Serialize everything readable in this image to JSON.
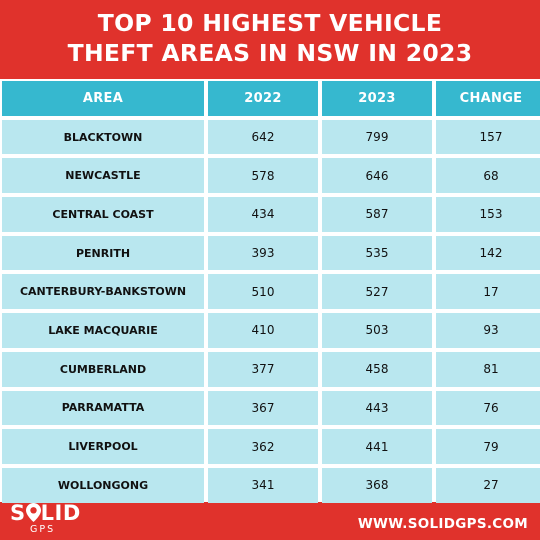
{
  "title": {
    "line1": "TOP 10 HIGHEST VEHICLE",
    "line2": "THEFT AREAS IN NSW IN 2023"
  },
  "table": {
    "headers": [
      "AREA",
      "2022",
      "2023",
      "CHANGE"
    ],
    "rows": [
      {
        "area": "BLACKTOWN",
        "y2022": "642",
        "y2023": "799",
        "change": "157"
      },
      {
        "area": "NEWCASTLE",
        "y2022": "578",
        "y2023": "646",
        "change": "68"
      },
      {
        "area": "CENTRAL COAST",
        "y2022": "434",
        "y2023": "587",
        "change": "153"
      },
      {
        "area": "PENRITH",
        "y2022": "393",
        "y2023": "535",
        "change": "142"
      },
      {
        "area": "CANTERBURY-BANKSTOWN",
        "y2022": "510",
        "y2023": "527",
        "change": "17"
      },
      {
        "area": "LAKE MACQUARIE",
        "y2022": "410",
        "y2023": "503",
        "change": "93"
      },
      {
        "area": "CUMBERLAND",
        "y2022": "377",
        "y2023": "458",
        "change": "81"
      },
      {
        "area": "PARRAMATTA",
        "y2022": "367",
        "y2023": "443",
        "change": "76"
      },
      {
        "area": "LIVERPOOL",
        "y2022": "362",
        "y2023": "441",
        "change": "79"
      },
      {
        "area": "WOLLONGONG",
        "y2022": "341",
        "y2023": "368",
        "change": "27"
      }
    ]
  },
  "logo": {
    "text_before": "S",
    "text_after": "LID",
    "sub": "GPS",
    "icon": "location-pin-icon"
  },
  "website": "WWW.SOLIDGPS.COM",
  "colors": {
    "background": "#e0322c",
    "header": "#36b8cf",
    "row": "#b9e7ef",
    "text": "#111111"
  }
}
